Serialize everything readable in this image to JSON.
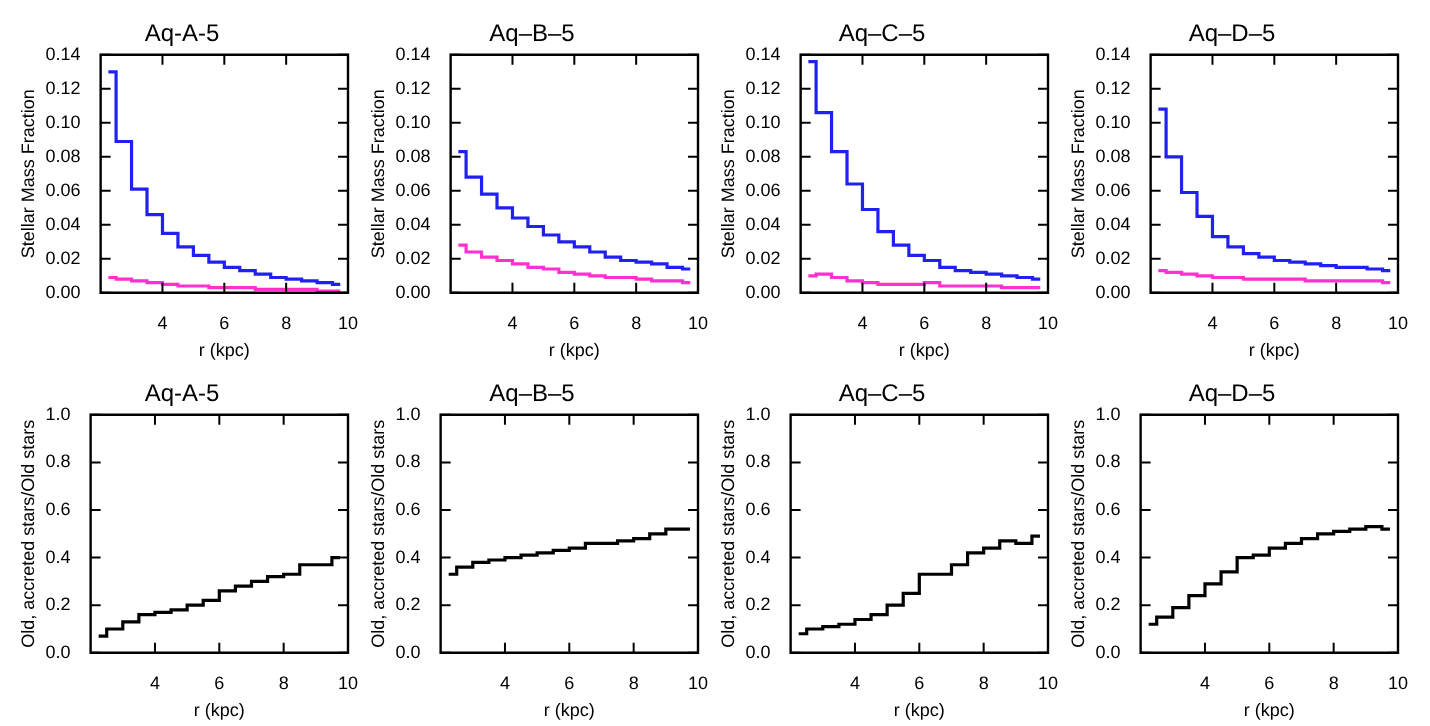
{
  "chart_data": [
    {
      "type": "step",
      "title": "Aq-A-5",
      "xlabel": "r (kpc)",
      "ylabel": "Stellar Mass Fraction",
      "x": [
        2.25,
        2.75,
        3.25,
        3.75,
        4.25,
        4.75,
        5.25,
        5.75,
        6.25,
        6.75,
        7.25,
        7.75,
        8.25,
        8.75,
        9.25,
        9.75
      ],
      "xlim": [
        2,
        10
      ],
      "xticks": [
        4,
        6,
        8,
        10
      ],
      "ylim": [
        0,
        0.14
      ],
      "yticks": [
        {
          "value": 0,
          "label": "0.00"
        },
        0.02,
        0.04,
        0.06,
        0.08,
        {
          "value": 0.1,
          "label": "0.10"
        },
        0.12,
        0.14
      ],
      "series": [
        {
          "color": "#2020f0",
          "values": [
            0.13,
            0.089,
            0.061,
            0.046,
            0.035,
            0.027,
            0.022,
            0.018,
            0.015,
            0.013,
            0.011,
            0.009,
            0.008,
            0.007,
            0.006,
            0.005
          ]
        },
        {
          "color": "#ff30d0",
          "values": [
            0.009,
            0.008,
            0.007,
            0.006,
            0.005,
            0.004,
            0.004,
            0.003,
            0.003,
            0.003,
            0.002,
            0.002,
            0.002,
            0.002,
            0.001,
            0.001
          ]
        }
      ]
    },
    {
      "type": "step",
      "title": "Aq–B–5",
      "xlabel": "r (kpc)",
      "ylabel": "Stellar Mass Fraction",
      "x": [
        2.25,
        2.75,
        3.25,
        3.75,
        4.25,
        4.75,
        5.25,
        5.75,
        6.25,
        6.75,
        7.25,
        7.75,
        8.25,
        8.75,
        9.25,
        9.75
      ],
      "xlim": [
        2,
        10
      ],
      "xticks": [
        4,
        6,
        8,
        10
      ],
      "ylim": [
        0,
        0.14
      ],
      "yticks": [
        {
          "value": 0,
          "label": "0.00"
        },
        0.02,
        0.04,
        0.06,
        0.08,
        {
          "value": 0.1,
          "label": "0.10"
        },
        0.12,
        0.14
      ],
      "series": [
        {
          "color": "#2020f0",
          "values": [
            0.083,
            0.068,
            0.058,
            0.05,
            0.044,
            0.039,
            0.034,
            0.03,
            0.027,
            0.024,
            0.021,
            0.019,
            0.018,
            0.017,
            0.015,
            0.014
          ]
        },
        {
          "color": "#ff30d0",
          "values": [
            0.028,
            0.024,
            0.021,
            0.019,
            0.017,
            0.015,
            0.014,
            0.012,
            0.011,
            0.01,
            0.009,
            0.009,
            0.008,
            0.007,
            0.007,
            0.006
          ]
        }
      ]
    },
    {
      "type": "step",
      "title": "Aq–C–5",
      "xlabel": "r (kpc)",
      "ylabel": "Stellar Mass Fraction",
      "x": [
        2.25,
        2.75,
        3.25,
        3.75,
        4.25,
        4.75,
        5.25,
        5.75,
        6.25,
        6.75,
        7.25,
        7.75,
        8.25,
        8.75,
        9.25,
        9.75
      ],
      "xlim": [
        2,
        10
      ],
      "xticks": [
        4,
        6,
        8,
        10
      ],
      "ylim": [
        0,
        0.14
      ],
      "yticks": [
        {
          "value": 0,
          "label": "0.00"
        },
        0.02,
        0.04,
        0.06,
        0.08,
        {
          "value": 0.1,
          "label": "0.10"
        },
        0.12,
        0.14
      ],
      "series": [
        {
          "color": "#2020f0",
          "values": [
            0.136,
            0.106,
            0.083,
            0.064,
            0.049,
            0.036,
            0.028,
            0.022,
            0.019,
            0.015,
            0.013,
            0.012,
            0.011,
            0.01,
            0.009,
            0.008
          ]
        },
        {
          "color": "#ff30d0",
          "values": [
            0.01,
            0.011,
            0.009,
            0.007,
            0.006,
            0.005,
            0.005,
            0.005,
            0.006,
            0.004,
            0.004,
            0.004,
            0.004,
            0.003,
            0.003,
            0.003
          ]
        }
      ]
    },
    {
      "type": "step",
      "title": "Aq–D–5",
      "xlabel": "r (kpc)",
      "ylabel": "Stellar Mass Fraction",
      "x": [
        2.25,
        2.75,
        3.25,
        3.75,
        4.25,
        4.75,
        5.25,
        5.75,
        6.25,
        6.75,
        7.25,
        7.75,
        8.25,
        8.75,
        9.25,
        9.75
      ],
      "xlim": [
        2,
        10
      ],
      "xticks": [
        4,
        6,
        8,
        10
      ],
      "ylim": [
        0,
        0.14
      ],
      "yticks": [
        {
          "value": 0,
          "label": "0.00"
        },
        0.02,
        0.04,
        0.06,
        0.08,
        {
          "value": 0.1,
          "label": "0.10"
        },
        0.12,
        0.14
      ],
      "series": [
        {
          "color": "#2020f0",
          "values": [
            0.108,
            0.08,
            0.059,
            0.045,
            0.033,
            0.027,
            0.023,
            0.021,
            0.019,
            0.018,
            0.017,
            0.016,
            0.015,
            0.015,
            0.014,
            0.013
          ]
        },
        {
          "color": "#ff30d0",
          "values": [
            0.013,
            0.012,
            0.011,
            0.01,
            0.009,
            0.009,
            0.008,
            0.008,
            0.008,
            0.008,
            0.007,
            0.007,
            0.007,
            0.007,
            0.007,
            0.006
          ]
        }
      ]
    },
    {
      "type": "step",
      "title": "Aq-A-5",
      "xlabel": "r (kpc)",
      "ylabel": "Old, accreted stars/Old stars",
      "x": [
        2.25,
        2.75,
        3.25,
        3.75,
        4.25,
        4.75,
        5.25,
        5.75,
        6.25,
        6.75,
        7.25,
        7.75,
        8.25,
        8.75,
        9.25,
        9.75
      ],
      "xlim": [
        2,
        10
      ],
      "xticks": [
        4,
        6,
        8,
        10
      ],
      "ylim": [
        0,
        1
      ],
      "yticks": [
        {
          "value": 0,
          "label": "0.0"
        },
        0.2,
        0.4,
        0.6,
        0.8,
        {
          "value": 1,
          "label": "1.0"
        }
      ],
      "series": [
        {
          "color": "#000000",
          "values": [
            0.07,
            0.1,
            0.13,
            0.16,
            0.17,
            0.18,
            0.2,
            0.22,
            0.26,
            0.28,
            0.3,
            0.32,
            0.33,
            0.37,
            0.37,
            0.4
          ]
        }
      ]
    },
    {
      "type": "step",
      "title": "Aq–B–5",
      "xlabel": "r (kpc)",
      "ylabel": "Old, accreted stars/Old stars",
      "x": [
        2.25,
        2.75,
        3.25,
        3.75,
        4.25,
        4.75,
        5.25,
        5.75,
        6.25,
        6.75,
        7.25,
        7.75,
        8.25,
        8.75,
        9.25,
        9.75
      ],
      "xlim": [
        2,
        10
      ],
      "xticks": [
        4,
        6,
        8,
        10
      ],
      "ylim": [
        0,
        1
      ],
      "yticks": [
        {
          "value": 0,
          "label": "0.0"
        },
        0.2,
        0.4,
        0.6,
        0.8,
        {
          "value": 1,
          "label": "1.0"
        }
      ],
      "series": [
        {
          "color": "#000000",
          "values": [
            0.33,
            0.36,
            0.38,
            0.39,
            0.4,
            0.41,
            0.42,
            0.43,
            0.44,
            0.46,
            0.46,
            0.47,
            0.48,
            0.5,
            0.52,
            0.52
          ]
        }
      ]
    },
    {
      "type": "step",
      "title": "Aq–C–5",
      "xlabel": "r (kpc)",
      "ylabel": "Old, accreted stars/Old stars",
      "x": [
        2.25,
        2.75,
        3.25,
        3.75,
        4.25,
        4.75,
        5.25,
        5.75,
        6.25,
        6.75,
        7.25,
        7.75,
        8.25,
        8.75,
        9.25,
        9.75
      ],
      "xlim": [
        2,
        10
      ],
      "xticks": [
        4,
        6,
        8,
        10
      ],
      "ylim": [
        0,
        1
      ],
      "yticks": [
        {
          "value": 0,
          "label": "0.0"
        },
        0.2,
        0.4,
        0.6,
        0.8,
        {
          "value": 1,
          "label": "1.0"
        }
      ],
      "series": [
        {
          "color": "#000000",
          "values": [
            0.08,
            0.1,
            0.11,
            0.12,
            0.14,
            0.16,
            0.2,
            0.25,
            0.33,
            0.33,
            0.37,
            0.42,
            0.44,
            0.47,
            0.46,
            0.49
          ]
        }
      ]
    },
    {
      "type": "step",
      "title": "Aq–D–5",
      "xlabel": "r (kpc)",
      "ylabel": "Old, accreted stars/Old stars",
      "x": [
        2.25,
        2.75,
        3.25,
        3.75,
        4.25,
        4.75,
        5.25,
        5.75,
        6.25,
        6.75,
        7.25,
        7.75,
        8.25,
        8.75,
        9.25,
        9.75
      ],
      "xlim": [
        2,
        10
      ],
      "xticks": [
        4,
        6,
        8,
        10
      ],
      "ylim": [
        0,
        1
      ],
      "yticks": [
        {
          "value": 0,
          "label": "0.0"
        },
        0.2,
        0.4,
        0.6,
        0.8,
        {
          "value": 1,
          "label": "1.0"
        }
      ],
      "series": [
        {
          "color": "#000000",
          "values": [
            0.12,
            0.15,
            0.19,
            0.24,
            0.29,
            0.34,
            0.4,
            0.41,
            0.44,
            0.46,
            0.48,
            0.5,
            0.51,
            0.52,
            0.53,
            0.52
          ]
        }
      ]
    }
  ]
}
